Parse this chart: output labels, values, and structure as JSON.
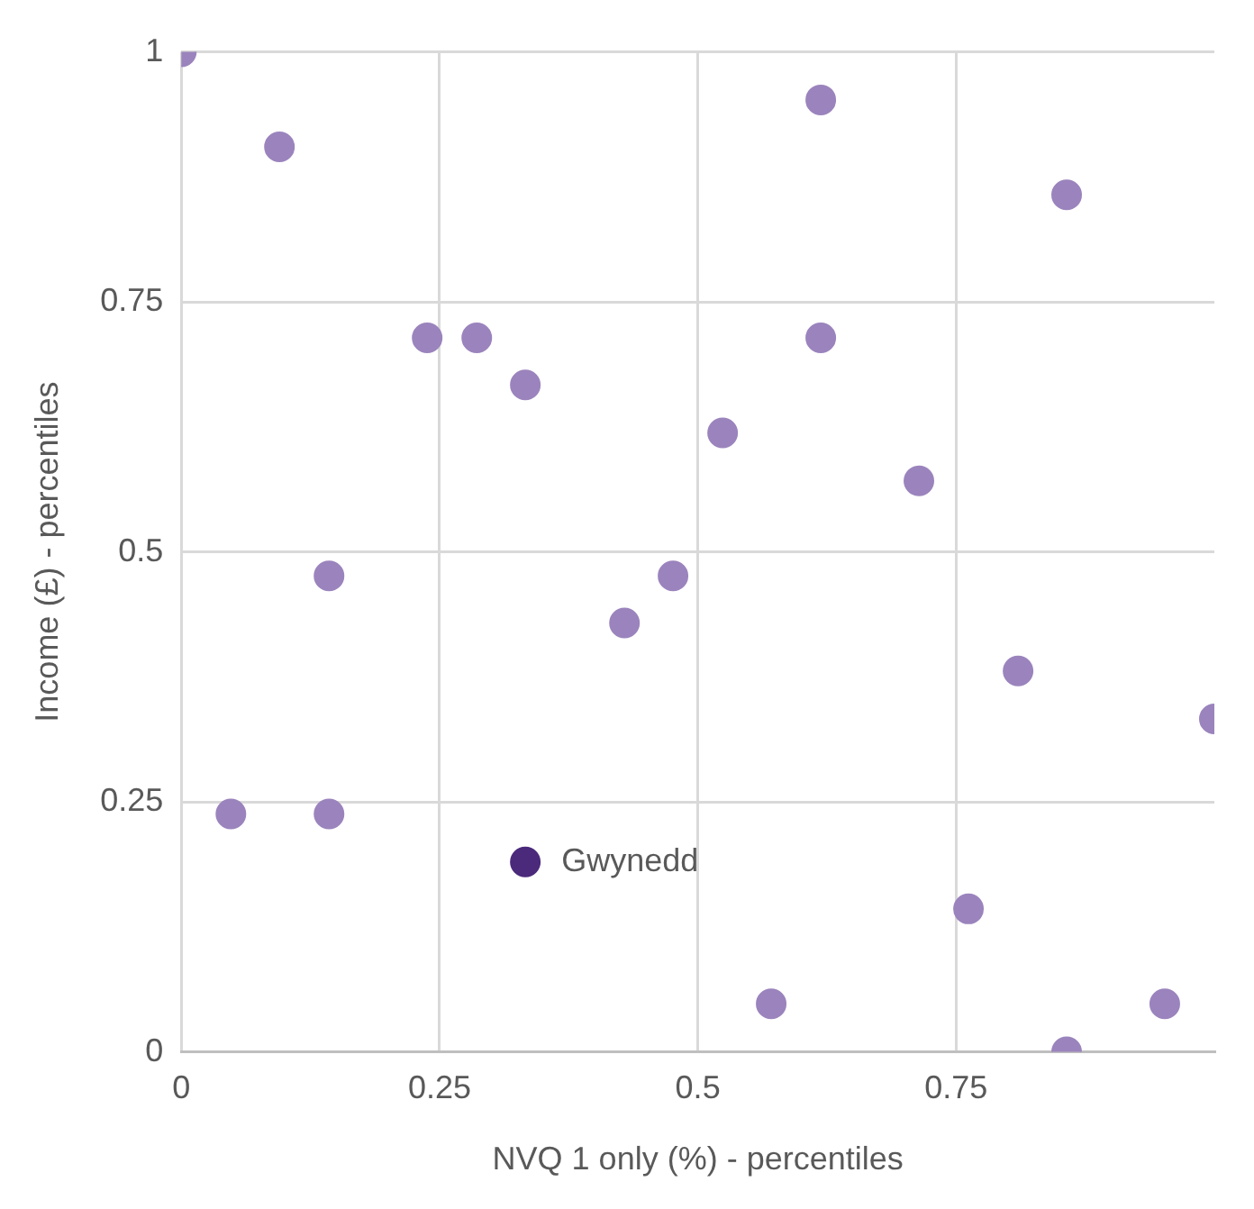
{
  "chart_data": {
    "type": "scatter",
    "xlabel": "NVQ 1 only (%) - percentiles",
    "ylabel": "Income (£) - percentiles",
    "xlim": [
      0,
      1
    ],
    "ylim": [
      0,
      1
    ],
    "xticks": [
      0,
      0.25,
      0.5,
      0.75
    ],
    "yticks": [
      0,
      0.25,
      0.5,
      0.75,
      1
    ],
    "grid": true,
    "legend": false,
    "marker": "circle",
    "series": [
      {
        "color": "#9b84bd",
        "x": [
          0,
          0.095,
          0.238,
          0.286,
          0.333,
          0.143,
          0.048,
          0.143,
          0.429,
          0.476,
          0.524,
          0.619,
          0.619,
          0.714,
          0.857,
          0.81,
          0.762,
          0.571,
          0.857,
          0.952,
          1
        ],
        "values": [
          1,
          0.905,
          0.714,
          0.714,
          0.667,
          0.476,
          0.238,
          0.238,
          0.429,
          0.476,
          0.619,
          0.952,
          0.714,
          0.571,
          0.857,
          0.381,
          0.143,
          0.048,
          0,
          0.048,
          0.333
        ]
      },
      {
        "name": "Gwynedd",
        "color": "#4b2a7b",
        "x": [
          0.333
        ],
        "values": [
          0.19
        ]
      }
    ]
  }
}
